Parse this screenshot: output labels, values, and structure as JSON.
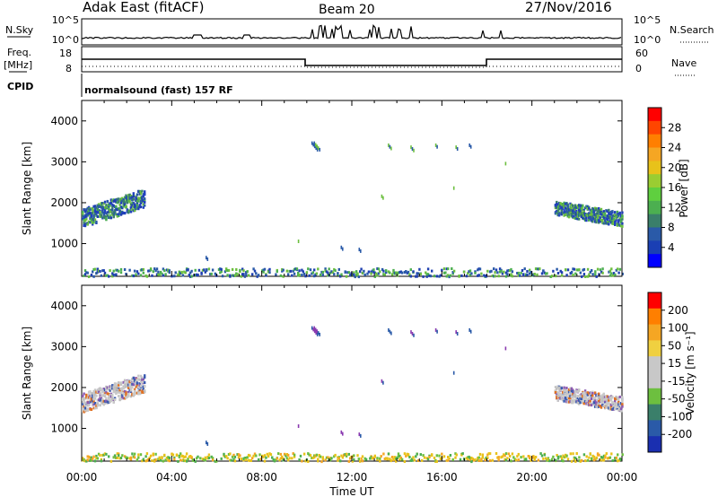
{
  "header": {
    "station": "Adak East (fitACF)",
    "beam": "Beam 20",
    "date": "27/Nov/2016"
  },
  "params": {
    "nsky_label": "N.Sky",
    "nsky_ticks": [
      "10^5",
      "10^0"
    ],
    "nsearch_label": "N.Search",
    "nsearch_ticks": [
      "10^5",
      "10^0"
    ],
    "freq_label": "Freq.",
    "freq_unit": "[MHz]",
    "freq_ticks": [
      "18",
      "8"
    ],
    "nave_label": "Nave",
    "nave_ticks": [
      "60",
      "0"
    ],
    "cpid_label": "CPID",
    "cpid_text": "normalsound (fast) 157 RF"
  },
  "chart_data": [
    {
      "type": "heatmap",
      "name": "power",
      "ylabel": "Slant Range [km]",
      "ylim": [
        200,
        4500
      ],
      "yticks": [
        "1000",
        "2000",
        "3000",
        "4000"
      ],
      "xlabel": "Time UT",
      "xlim_hours": [
        0,
        24
      ],
      "xticks": [
        "00:00",
        "04:00",
        "08:00",
        "12:00",
        "16:00",
        "20:00",
        "00:00"
      ],
      "colorbar": {
        "label": "Power [dB]",
        "ticks": [
          "28",
          "24",
          "20",
          "16",
          "12",
          "8",
          "4"
        ],
        "colors": [
          "#0000ff",
          "#1a3fb4",
          "#2a5aa8",
          "#3a7f6a",
          "#4caf50",
          "#5fcf3f",
          "#9acd32",
          "#e8c21a",
          "#f5a623",
          "#ff7f00",
          "#ff4500",
          "#ff0000"
        ]
      },
      "regions": [
        {
          "t0": 0.0,
          "t1": 2.8,
          "r_center_start": 1650,
          "r_center_end": 2150,
          "width": 450,
          "level": "mid"
        },
        {
          "t0": 21.0,
          "t1": 24.0,
          "r_center_start": 1900,
          "r_center_end": 1620,
          "width": 350,
          "level": "low"
        },
        {
          "t0": 0.0,
          "t1": 24.0,
          "r_center_start": 320,
          "r_center_end": 320,
          "width": 200,
          "level": "sparse"
        }
      ]
    },
    {
      "type": "heatmap",
      "name": "velocity",
      "ylabel": "Slant Range [km]",
      "ylim": [
        200,
        4500
      ],
      "yticks": [
        "1000",
        "2000",
        "3000",
        "4000"
      ],
      "xlabel": "Time UT",
      "xlim_hours": [
        0,
        24
      ],
      "xticks": [
        "00:00",
        "04:00",
        "08:00",
        "12:00",
        "16:00",
        "20:00",
        "00:00"
      ],
      "colorbar": {
        "label": "Velocity [m s⁻¹]",
        "ticks": [
          "200",
          "100",
          "50",
          "15",
          "-15",
          "-50",
          "-100",
          "-200"
        ],
        "colors": [
          "#1a2fb0",
          "#2a5aa8",
          "#3a7f6a",
          "#6dbf3f",
          "#c8c8c8",
          "#c8c8c8",
          "#f0d040",
          "#f5a623",
          "#ff7f00",
          "#ff0000"
        ]
      },
      "regions": [
        {
          "t0": 0.0,
          "t1": 2.8,
          "r_center_start": 1650,
          "r_center_end": 2150,
          "width": 450,
          "level": "grey"
        },
        {
          "t0": 21.0,
          "t1": 24.0,
          "r_center_start": 1900,
          "r_center_end": 1620,
          "width": 350,
          "level": "grey"
        },
        {
          "t0": 0.0,
          "t1": 24.0,
          "r_center_start": 320,
          "r_center_end": 320,
          "width": 200,
          "level": "sparse"
        }
      ]
    }
  ]
}
